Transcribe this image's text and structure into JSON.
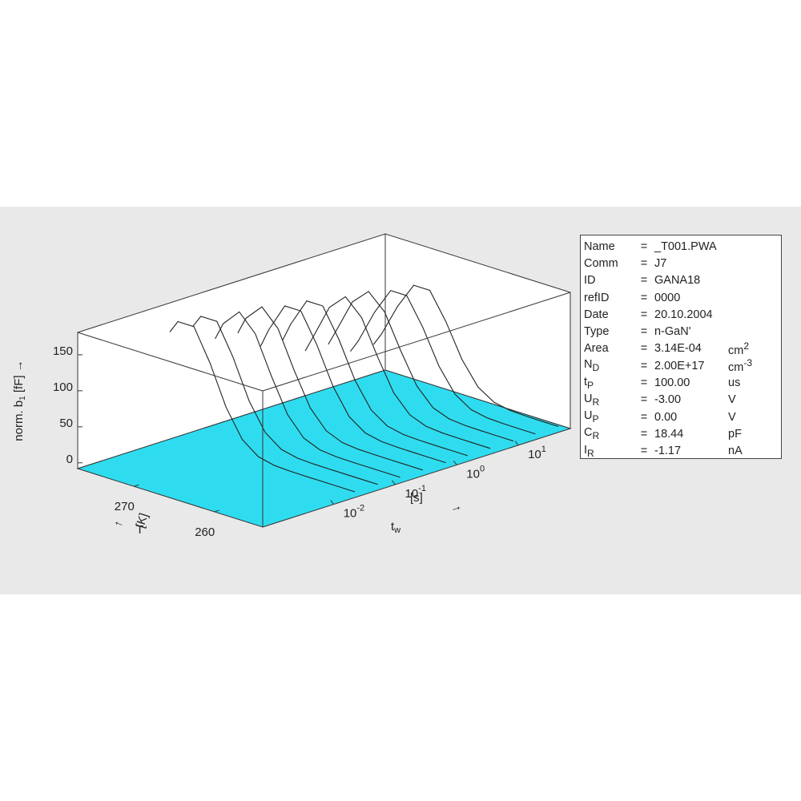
{
  "chart_data": {
    "type": "waterfall3d",
    "zlabel": {
      "main": "norm. b",
      "sub": "1",
      "rest": " [fF] →"
    },
    "tlabel": {
      "main": "T",
      "unit": "[K]",
      "arrow": "←"
    },
    "xlabel": {
      "main": "t",
      "sub": "w",
      "unit": "[s]",
      "arrow": "→"
    },
    "x": [
      254,
      256,
      258,
      260,
      262,
      264,
      266,
      268,
      270,
      272,
      274,
      276,
      277
    ],
    "tlim": [
      254,
      277
    ],
    "tticks": [
      260,
      270
    ],
    "xlim": [
      0.0007,
      70
    ],
    "xscale": "log",
    "xticks": [
      {
        "value": 0.01,
        "label": "10-2"
      },
      {
        "value": 0.1,
        "label": "10-1"
      },
      {
        "value": 1,
        "label": "100"
      },
      {
        "value": 10,
        "label": "101"
      }
    ],
    "zlim": [
      -8,
      181
    ],
    "zticks": [
      0,
      50,
      100,
      150
    ],
    "floor_color": "#2fdcef",
    "line_color": "#222222",
    "series": [
      {
        "tw": 0.022,
        "values": [
          0,
          0,
          0,
          0,
          0.2,
          1.3,
          6.4,
          23.3,
          60.7,
          115.2,
          158.6,
          158.6,
          140.6
        ]
      },
      {
        "tw": 0.052,
        "values": [
          0,
          0,
          0,
          0,
          0.2,
          1.3,
          6.3,
          22.8,
          59.6,
          113.1,
          155.7,
          155.7,
          138.0
        ]
      },
      {
        "tw": 0.12,
        "values": [
          0,
          0,
          0,
          0.1,
          0.5,
          2.9,
          12.2,
          37.7,
          83.8,
          135.5,
          159,
          135.5,
          111.0
        ]
      },
      {
        "tw": 0.28,
        "values": [
          0,
          0,
          0,
          0.1,
          0.5,
          2.8,
          12.0,
          37.0,
          82.2,
          132.9,
          156,
          132.9,
          108.9
        ]
      },
      {
        "tw": 0.66,
        "values": [
          0,
          0,
          0,
          0.2,
          1.2,
          6.0,
          21.6,
          56.3,
          106.8,
          147.0,
          147.0,
          106.8,
          80.6
        ]
      },
      {
        "tw": 1.5,
        "values": [
          0,
          0,
          0,
          0.2,
          1.2,
          5.9,
          21.2,
          55.2,
          104.7,
          144.2,
          144.2,
          104.7,
          79.1
        ]
      },
      {
        "tw": 3.5,
        "values": [
          0,
          0,
          0.1,
          0.5,
          2.6,
          11.3,
          34.8,
          77.5,
          125.2,
          147,
          125.2,
          77.5,
          54.1
        ]
      },
      {
        "tw": 8.3,
        "values": [
          0,
          0,
          0.1,
          0.5,
          2.6,
          11.1,
          34.1,
          75.9,
          122.7,
          144,
          122.7,
          75.9,
          53.0
        ]
      },
      {
        "tw": 19,
        "values": [
          0,
          0,
          0.2,
          1.1,
          5.5,
          19.9,
          51.9,
          98.4,
          135.5,
          135.5,
          98.4,
          51.9,
          33.4
        ]
      },
      {
        "tw": 45,
        "values": [
          0,
          0,
          0.2,
          1.1,
          5.4,
          19.5,
          50.8,
          96.3,
          132.6,
          132.6,
          96.3,
          50.8,
          32.7
        ]
      }
    ]
  },
  "info": [
    {
      "key": "Name",
      "sub": "",
      "eq": "=",
      "value": "_T001.PWA",
      "unit": "",
      "sup": ""
    },
    {
      "key": "Comm",
      "sub": "",
      "eq": "=",
      "value": "J7",
      "unit": "",
      "sup": ""
    },
    {
      "key": "ID",
      "sub": "",
      "eq": "=",
      "value": "GANA18",
      "unit": "",
      "sup": ""
    },
    {
      "key": "refID",
      "sub": "",
      "eq": "=",
      "value": "0000",
      "unit": "",
      "sup": ""
    },
    {
      "key": "Date",
      "sub": "",
      "eq": "=",
      "value": "20.10.2004",
      "unit": "",
      "sup": ""
    },
    {
      "key": "Type",
      "sub": "",
      "eq": "=",
      "value": "n-GaN'",
      "unit": "",
      "sup": ""
    },
    {
      "key": "Area",
      "sub": "",
      "eq": "=",
      "value": "3.14E-04",
      "unit": "cm",
      "sup": "2"
    },
    {
      "key": "N",
      "sub": "D",
      "eq": "=",
      "value": "2.00E+17",
      "unit": "cm",
      "sup": "-3"
    },
    {
      "key": "t",
      "sub": "P",
      "eq": "=",
      "value": "100.00",
      "unit": "us",
      "sup": ""
    },
    {
      "key": "U",
      "sub": "R",
      "eq": "=",
      "value": "-3.00",
      "unit": "V",
      "sup": ""
    },
    {
      "key": "U",
      "sub": "P",
      "eq": "=",
      "value": "0.00",
      "unit": "V",
      "sup": ""
    },
    {
      "key": "C",
      "sub": "R",
      "eq": "=",
      "value": "18.44",
      "unit": "pF",
      "sup": ""
    },
    {
      "key": "I",
      "sub": "R",
      "eq": "=",
      "value": "-1.17",
      "unit": "nA",
      "sup": ""
    }
  ]
}
